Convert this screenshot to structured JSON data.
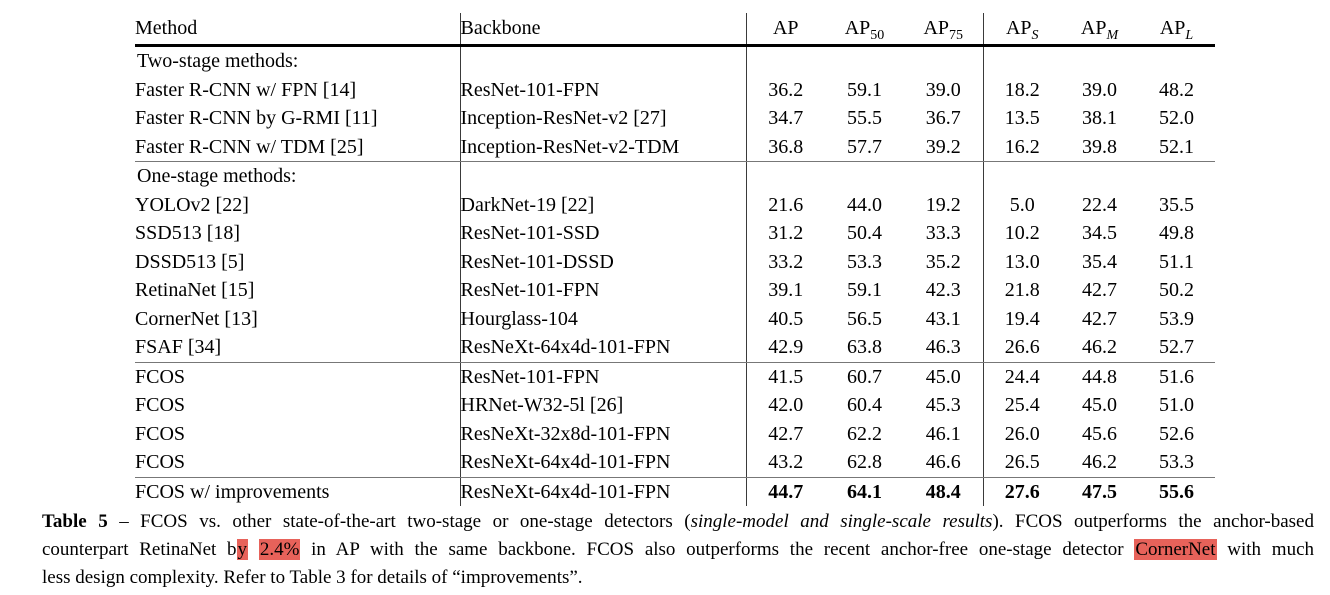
{
  "colors": {
    "highlight": "#e7625a",
    "text": "#000000"
  },
  "table": {
    "headers": [
      {
        "label": "Method",
        "sub": "",
        "sub_italic": false
      },
      {
        "label": "Backbone",
        "sub": "",
        "sub_italic": false
      },
      {
        "label": "AP",
        "sub": "",
        "sub_italic": false
      },
      {
        "label": "AP",
        "sub": "50",
        "sub_italic": false
      },
      {
        "label": "AP",
        "sub": "75",
        "sub_italic": false
      },
      {
        "label": "AP",
        "sub": "S",
        "sub_italic": true
      },
      {
        "label": "AP",
        "sub": "M",
        "sub_italic": true
      },
      {
        "label": "AP",
        "sub": "L",
        "sub_italic": true
      }
    ],
    "rows": [
      {
        "type": "section",
        "method": "Two-stage methods:",
        "backbone": "",
        "values": [
          "",
          "",
          "",
          "",
          "",
          ""
        ],
        "bold": false,
        "rule_below": false
      },
      {
        "type": "data",
        "method": "Faster R-CNN w/ FPN [14]",
        "backbone": "ResNet-101-FPN",
        "values": [
          "36.2",
          "59.1",
          "39.0",
          "18.2",
          "39.0",
          "48.2"
        ],
        "bold": false,
        "rule_below": false
      },
      {
        "type": "data",
        "method": "Faster R-CNN by G-RMI [11]",
        "backbone": "Inception-ResNet-v2 [27]",
        "values": [
          "34.7",
          "55.5",
          "36.7",
          "13.5",
          "38.1",
          "52.0"
        ],
        "bold": false,
        "rule_below": false
      },
      {
        "type": "data",
        "method": "Faster R-CNN w/ TDM [25]",
        "backbone": "Inception-ResNet-v2-TDM",
        "values": [
          "36.8",
          "57.7",
          "39.2",
          "16.2",
          "39.8",
          "52.1"
        ],
        "bold": false,
        "rule_below": true
      },
      {
        "type": "section",
        "method": "One-stage methods:",
        "backbone": "",
        "values": [
          "",
          "",
          "",
          "",
          "",
          ""
        ],
        "bold": false,
        "rule_below": false
      },
      {
        "type": "data",
        "method": "YOLOv2 [22]",
        "backbone": "DarkNet-19 [22]",
        "values": [
          "21.6",
          "44.0",
          "19.2",
          "5.0",
          "22.4",
          "35.5"
        ],
        "bold": false,
        "rule_below": false
      },
      {
        "type": "data",
        "method": "SSD513 [18]",
        "backbone": "ResNet-101-SSD",
        "values": [
          "31.2",
          "50.4",
          "33.3",
          "10.2",
          "34.5",
          "49.8"
        ],
        "bold": false,
        "rule_below": false
      },
      {
        "type": "data",
        "method": "DSSD513 [5]",
        "backbone": "ResNet-101-DSSD",
        "values": [
          "33.2",
          "53.3",
          "35.2",
          "13.0",
          "35.4",
          "51.1"
        ],
        "bold": false,
        "rule_below": false
      },
      {
        "type": "data",
        "method": "RetinaNet [15]",
        "backbone": "ResNet-101-FPN",
        "values": [
          "39.1",
          "59.1",
          "42.3",
          "21.8",
          "42.7",
          "50.2"
        ],
        "bold": false,
        "rule_below": false
      },
      {
        "type": "data",
        "method": "CornerNet [13]",
        "backbone": "Hourglass-104",
        "values": [
          "40.5",
          "56.5",
          "43.1",
          "19.4",
          "42.7",
          "53.9"
        ],
        "bold": false,
        "rule_below": false
      },
      {
        "type": "data",
        "method": "FSAF [34]",
        "backbone": "ResNeXt-64x4d-101-FPN",
        "values": [
          "42.9",
          "63.8",
          "46.3",
          "26.6",
          "46.2",
          "52.7"
        ],
        "bold": false,
        "rule_below": true
      },
      {
        "type": "data",
        "method": "FCOS",
        "backbone": "ResNet-101-FPN",
        "values": [
          "41.5",
          "60.7",
          "45.0",
          "24.4",
          "44.8",
          "51.6"
        ],
        "bold": false,
        "rule_below": false
      },
      {
        "type": "data",
        "method": "FCOS",
        "backbone": "HRNet-W32-5l [26]",
        "values": [
          "42.0",
          "60.4",
          "45.3",
          "25.4",
          "45.0",
          "51.0"
        ],
        "bold": false,
        "rule_below": false
      },
      {
        "type": "data",
        "method": "FCOS",
        "backbone": "ResNeXt-32x8d-101-FPN",
        "values": [
          "42.7",
          "62.2",
          "46.1",
          "26.0",
          "45.6",
          "52.6"
        ],
        "bold": false,
        "rule_below": false
      },
      {
        "type": "data",
        "method": "FCOS",
        "backbone": "ResNeXt-64x4d-101-FPN",
        "values": [
          "43.2",
          "62.8",
          "46.6",
          "26.5",
          "46.2",
          "53.3"
        ],
        "bold": false,
        "rule_below": true
      },
      {
        "type": "data",
        "method": "FCOS w/ improvements",
        "backbone": "ResNeXt-64x4d-101-FPN",
        "values": [
          "44.7",
          "64.1",
          "48.4",
          "27.6",
          "47.5",
          "55.6"
        ],
        "bold": true,
        "rule_below": false
      }
    ]
  },
  "caption": {
    "lines": [
      {
        "justify": true,
        "parts": [
          {
            "text": "Table 5",
            "bold": true
          },
          {
            "text": " – FCOS vs. other state-of-the-art two-stage or one-stage detectors ("
          },
          {
            "text": "single-model and single-scale results",
            "italic": true
          },
          {
            "text": "). FCOS outperforms the anchor-based"
          }
        ]
      },
      {
        "justify": true,
        "parts": [
          {
            "text": "counterpart RetinaNet b"
          },
          {
            "text": "y",
            "highlight": true
          },
          {
            "text": " "
          },
          {
            "text": "2.4%",
            "highlight": true
          },
          {
            "text": " in AP with the same backbone. FCOS also outperforms the recent anchor-free one-stage detector "
          },
          {
            "text": "CornerNet",
            "highlight": true
          },
          {
            "text": " with much"
          }
        ]
      },
      {
        "justify": false,
        "parts": [
          {
            "text": "less design complexity. Refer to Table 3 for details of “improvements”."
          }
        ]
      }
    ]
  }
}
